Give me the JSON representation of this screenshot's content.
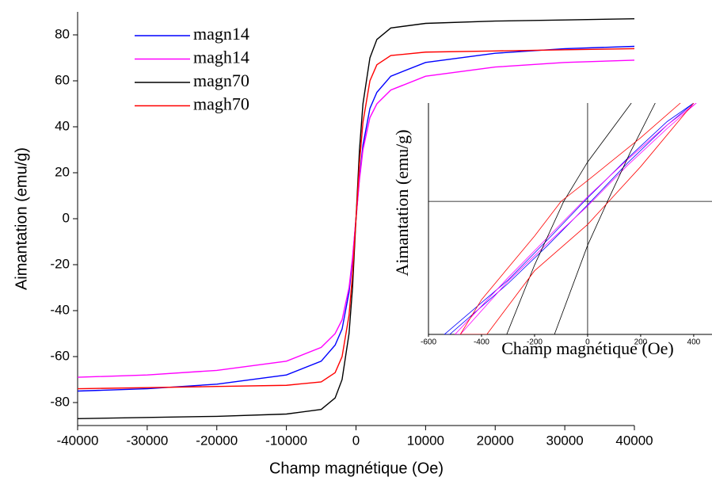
{
  "chart_data": [
    {
      "type": "line",
      "xlabel": "Champ magnétique (Oe)",
      "ylabel": "Aimantation (emu/g)",
      "xlim": [
        -40000,
        40000
      ],
      "ylim": [
        -90,
        90
      ],
      "xticks": [
        -40000,
        -30000,
        -20000,
        -10000,
        0,
        10000,
        20000,
        30000,
        40000
      ],
      "yticks": [
        -80,
        -60,
        -40,
        -20,
        0,
        20,
        40,
        60,
        80
      ],
      "legend": "upper left",
      "x": [
        -40000,
        -30000,
        -20000,
        -10000,
        -5000,
        -3000,
        -2000,
        -1000,
        -500,
        0,
        500,
        1000,
        2000,
        3000,
        5000,
        10000,
        20000,
        30000,
        40000
      ],
      "series": [
        {
          "name": "magn14",
          "color": "#0000ff",
          "values": [
            -75,
            -74,
            -72,
            -68,
            -62,
            -55,
            -48,
            -32,
            -18,
            0,
            18,
            32,
            48,
            55,
            62,
            68,
            72,
            74,
            75
          ]
        },
        {
          "name": "magh14",
          "color": "#ff00ff",
          "values": [
            -69,
            -68,
            -66,
            -62,
            -56,
            -50,
            -44,
            -30,
            -17,
            0,
            17,
            30,
            44,
            50,
            56,
            62,
            66,
            68,
            69
          ]
        },
        {
          "name": "magn70",
          "color": "#000000",
          "values": [
            -87,
            -86.5,
            -86,
            -85,
            -83,
            -78,
            -70,
            -50,
            -30,
            0,
            30,
            50,
            70,
            78,
            83,
            85,
            86,
            86.5,
            87
          ]
        },
        {
          "name": "magh70",
          "color": "#ff0000",
          "values": [
            -74,
            -73.5,
            -73,
            -72.5,
            -71,
            -67,
            -60,
            -42,
            -24,
            0,
            24,
            42,
            60,
            67,
            71,
            72.5,
            73,
            73.5,
            74
          ]
        }
      ]
    },
    {
      "type": "loop",
      "xlabel": "Champ magnétique (Oe)",
      "ylabel": "Aimantation (emu/g)",
      "xlim": [
        -600,
        469
      ],
      "ylim": [
        -11.5,
        8.5
      ],
      "xticks": [
        -600,
        -400,
        -200,
        0,
        200,
        400
      ],
      "series": [
        {
          "color": "#0000ff",
          "x": [
            400,
            300,
            150,
            0,
            -150,
            -300,
            -540,
            -520,
            -300,
            -150,
            0,
            150,
            300,
            400
          ],
          "values": [
            8.5,
            6.9,
            3.7,
            0.3,
            -3.3,
            -6.8,
            -11.5,
            -11.5,
            -7.1,
            -3.8,
            -0.3,
            3.3,
            6.6,
            8.5
          ]
        },
        {
          "color": "#ff00ff",
          "x": [
            410,
            300,
            150,
            0,
            -150,
            -300,
            -500,
            -480,
            -300,
            -150,
            0,
            150,
            300,
            410
          ],
          "values": [
            8.5,
            6.6,
            3.6,
            0.4,
            -3.1,
            -6.6,
            -11.5,
            -11.5,
            -6.9,
            -3.6,
            -0.4,
            3.1,
            6.3,
            8.5
          ]
        },
        {
          "color": "#000000",
          "x": [
            165,
            0,
            -90,
            -200,
            -305,
            -125,
            0,
            75,
            160,
            255
          ],
          "values": [
            8.5,
            3.4,
            0,
            -5.5,
            -11.5,
            -11.5,
            -3.8,
            0,
            4.2,
            8.5
          ]
        },
        {
          "color": "#ff0000",
          "x": [
            350,
            200,
            0,
            -100,
            -200,
            -400,
            -480,
            -380,
            -200,
            0,
            80,
            200,
            400
          ],
          "values": [
            8.5,
            5.5,
            1.8,
            0,
            -3,
            -8.5,
            -11.5,
            -11.5,
            -6,
            -2,
            0,
            3,
            8.5
          ]
        }
      ]
    }
  ]
}
